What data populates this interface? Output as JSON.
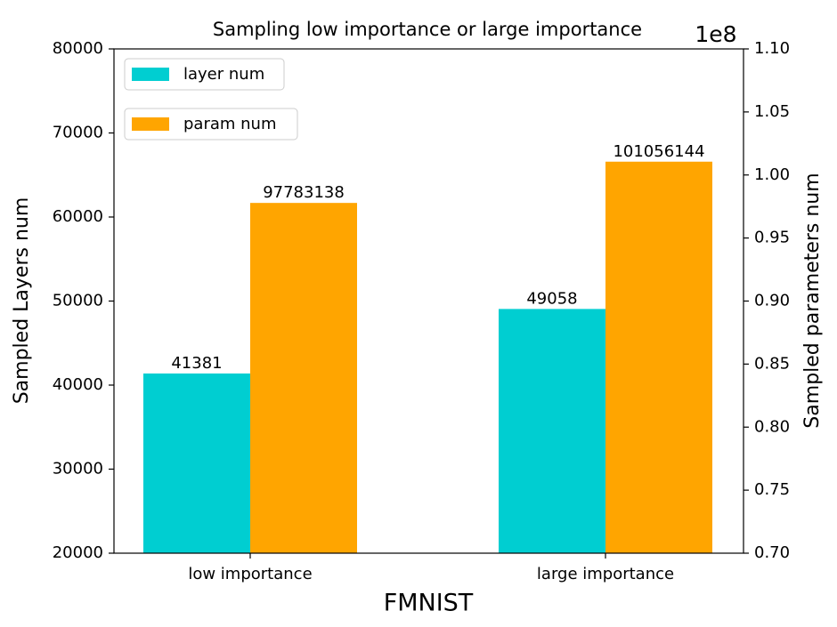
{
  "chart_data": {
    "type": "bar",
    "title": "Sampling low importance or large importance",
    "x_label": "FMNIST",
    "y_label": "Sampled Layers num",
    "y2_label": "Sampled parameters num",
    "y2_offset_label": "1e8",
    "categories": [
      "low importance",
      "large importance"
    ],
    "series": [
      {
        "name": "layer num",
        "color": "#00ced1",
        "values": [
          41381,
          49058
        ],
        "axis": "y"
      },
      {
        "name": "param num",
        "color": "#ffa500",
        "values": [
          97783138,
          101056144
        ],
        "axis": "y2"
      }
    ],
    "ylim": [
      20000,
      80000
    ],
    "yticks": [
      20000,
      30000,
      40000,
      50000,
      60000,
      70000,
      80000
    ],
    "y2lim": [
      70000000,
      110000000
    ],
    "y2ticks": [
      {
        "value": 70000000,
        "label": "0.70"
      },
      {
        "value": 75000000,
        "label": "0.75"
      },
      {
        "value": 80000000,
        "label": "0.80"
      },
      {
        "value": 85000000,
        "label": "0.85"
      },
      {
        "value": 90000000,
        "label": "0.90"
      },
      {
        "value": 95000000,
        "label": "0.95"
      },
      {
        "value": 100000000,
        "label": "1.00"
      },
      {
        "value": 105000000,
        "label": "1.05"
      },
      {
        "value": 110000000,
        "label": "1.10"
      }
    ],
    "legend": "upper left",
    "grid": false
  }
}
